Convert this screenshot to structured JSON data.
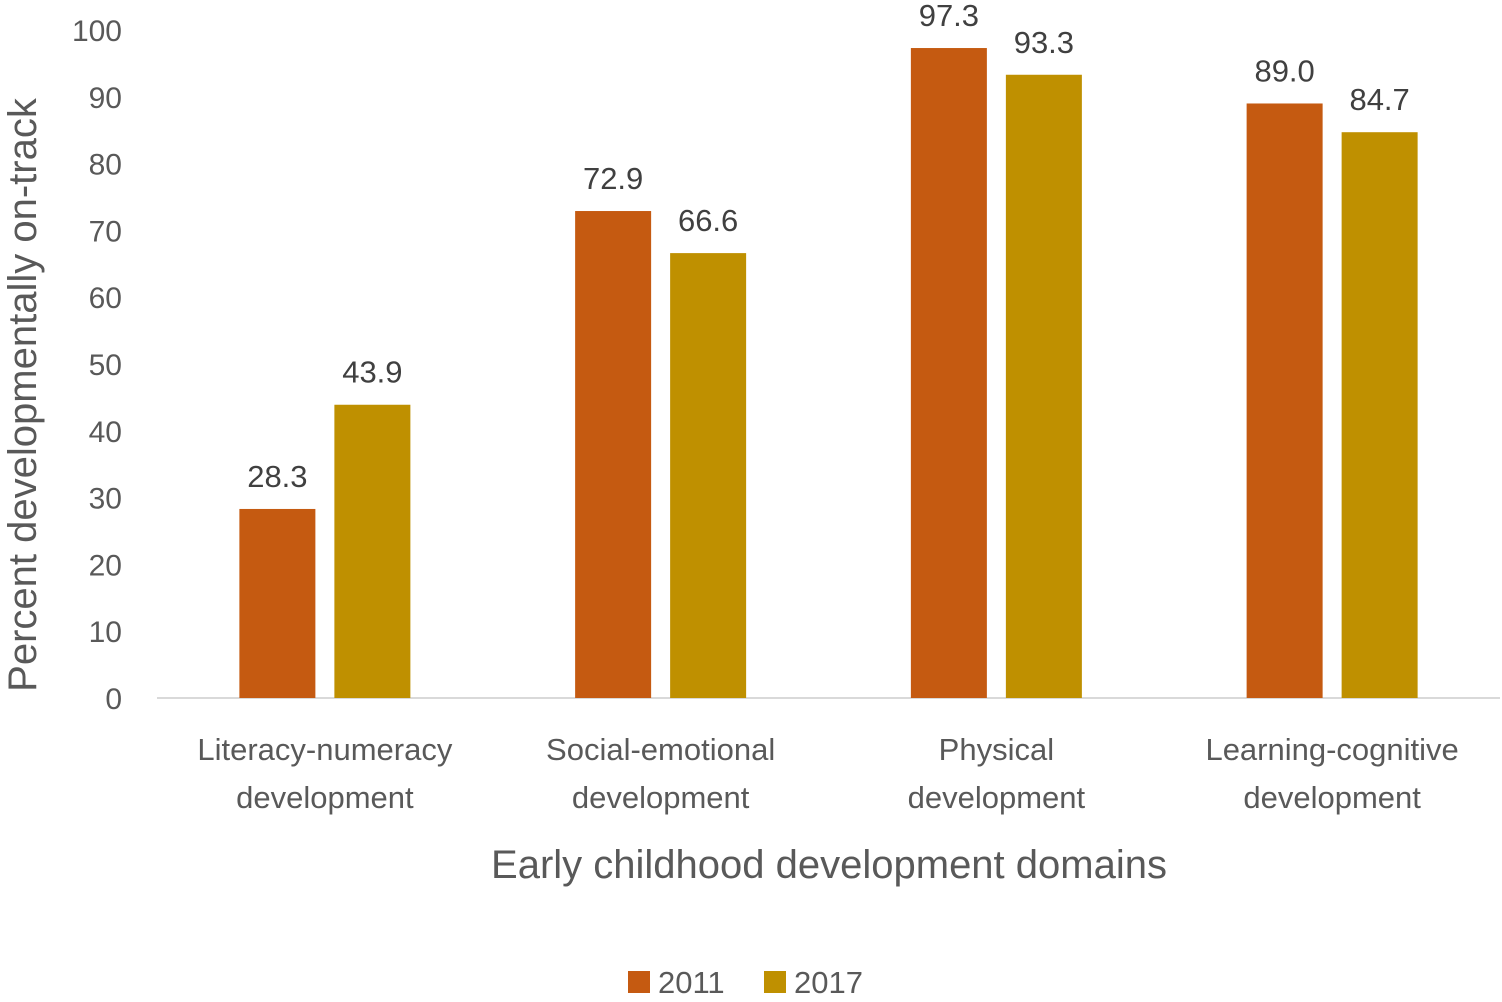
{
  "chart_data": {
    "type": "bar",
    "title": "",
    "xlabel": "Early childhood development domains",
    "ylabel": "Percent developmentally on-track",
    "categories": [
      [
        "Literacy-numeracy",
        "development"
      ],
      [
        "Social-emotional",
        "development"
      ],
      [
        "Physical",
        "development"
      ],
      [
        "Learning-cognitive",
        "development"
      ]
    ],
    "series": [
      {
        "name": "2011",
        "color": "#c55a11",
        "values": [
          28.3,
          72.9,
          97.3,
          89.0
        ],
        "labels": [
          "28.3",
          "72.9",
          "97.3",
          "89.0"
        ]
      },
      {
        "name": "2017",
        "color": "#bf9000",
        "values": [
          43.9,
          66.6,
          93.3,
          84.7
        ],
        "labels": [
          "43.9",
          "66.6",
          "93.3",
          "84.7"
        ]
      }
    ],
    "ylim": [
      0,
      100
    ],
    "yticks": [
      0,
      10,
      20,
      30,
      40,
      50,
      60,
      70,
      80,
      90,
      100
    ],
    "grid": false,
    "legend_position": "bottom",
    "axis_color": "#d9d9d9"
  }
}
